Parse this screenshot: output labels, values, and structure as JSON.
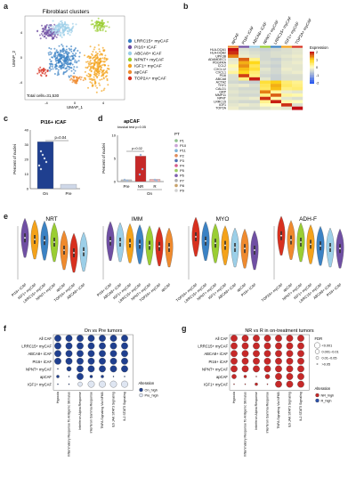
{
  "panel_labels": [
    "a",
    "b",
    "c",
    "d",
    "e",
    "f",
    "g"
  ],
  "a": {
    "title": "Fibroblast clusters",
    "xlabel": "UMAP_1",
    "ylabel": "UMAP_2",
    "total": "Total cells=31,530",
    "xticks": [
      "-4",
      "0",
      "4"
    ],
    "yticks": [
      "4",
      "0",
      "-4"
    ],
    "legend": [
      {
        "label": "LRRC15+ myCAF",
        "color": "#3b82c4"
      },
      {
        "label": "PI16+ iCAF",
        "color": "#6f4fa3"
      },
      {
        "label": "ABCA8+ iCAF",
        "color": "#9ccfe8"
      },
      {
        "label": "NPNT+ myCAF",
        "color": "#9acd32"
      },
      {
        "label": "IGF1+ myCAF",
        "color": "#f4a21a"
      },
      {
        "label": "apCAF",
        "color": "#ef8a2e"
      },
      {
        "label": "TOP2A+ myCAF",
        "color": "#d7301f"
      }
    ]
  },
  "b": {
    "columns": [
      "apCAF",
      "PI16+ iCAF",
      "ABCA8+ iCAF",
      "NPNT+ myCAF",
      "LRRC15+ myCAF",
      "IGF1+ myCAF",
      "TOP2A+ myCAF"
    ],
    "column_colors": [
      "#ef8a2e",
      "#6f4fa3",
      "#9ccfe8",
      "#9acd32",
      "#3b82c4",
      "#f4a21a",
      "#d7301f"
    ],
    "genes": [
      "HLA-DQA1",
      "HLA-DQB2",
      "UPK3B",
      "ADAMDEC1",
      "PDGFRA",
      "CCL2",
      "CXCL12",
      "CXCL1",
      "PI16",
      "ABCA8",
      "ACTA2",
      "THY1",
      "CALD1",
      "GRP",
      "MMP11",
      "NPNT",
      "LRRC15",
      "IGF1",
      "TOP2A"
    ],
    "matrix": [
      [
        2.5,
        -0.4,
        -0.5,
        -0.6,
        -0.5,
        -0.4,
        -0.3
      ],
      [
        2.3,
        -0.3,
        -0.4,
        -0.5,
        -0.4,
        -0.4,
        -0.3
      ],
      [
        1.8,
        -0.2,
        -0.3,
        -0.5,
        -0.4,
        -0.3,
        -0.2
      ],
      [
        -0.3,
        2.0,
        0.4,
        -0.5,
        -0.6,
        -0.4,
        -0.3
      ],
      [
        -0.2,
        1.5,
        1.2,
        -0.4,
        -0.5,
        -0.3,
        -0.2
      ],
      [
        0.2,
        1.7,
        0.8,
        -0.5,
        -0.6,
        -0.3,
        -0.3
      ],
      [
        -0.1,
        1.4,
        1.0,
        -0.3,
        -0.5,
        -0.2,
        -0.3
      ],
      [
        0.3,
        1.2,
        0.6,
        -0.4,
        -0.5,
        -0.3,
        -0.2
      ],
      [
        -0.4,
        2.2,
        0.5,
        -0.5,
        -0.6,
        -0.4,
        -0.4
      ],
      [
        -0.4,
        0.5,
        2.4,
        -0.3,
        -0.6,
        -0.4,
        -0.4
      ],
      [
        -0.5,
        -0.6,
        -0.6,
        1.0,
        1.3,
        0.6,
        0.4
      ],
      [
        -0.3,
        -0.2,
        -0.4,
        0.8,
        1.5,
        0.7,
        0.5
      ],
      [
        -0.4,
        -0.5,
        -0.5,
        0.7,
        1.4,
        0.5,
        0.6
      ],
      [
        -0.3,
        -0.4,
        -0.4,
        1.8,
        0.3,
        -0.2,
        -0.3
      ],
      [
        -0.4,
        -0.5,
        -0.5,
        0.5,
        2.0,
        0.3,
        0.2
      ],
      [
        -0.3,
        -0.3,
        -0.2,
        2.3,
        0.2,
        -0.3,
        -0.4
      ],
      [
        -0.4,
        -0.5,
        -0.5,
        0.4,
        2.4,
        0.2,
        0.1
      ],
      [
        -0.3,
        -0.2,
        -0.3,
        0.1,
        0.0,
        2.3,
        -0.4
      ],
      [
        -0.2,
        -0.4,
        -0.4,
        -0.3,
        -0.2,
        -0.3,
        2.6
      ]
    ],
    "legend_title": "Expression",
    "legend_ticks": [
      "2",
      "1",
      "0",
      "-1",
      "-2"
    ]
  },
  "c": {
    "title": "PI16+ iCAF",
    "ylabel": "Percent of nuclei",
    "pvalue": "p=0.04",
    "categories": [
      "On",
      "Pre"
    ],
    "values": [
      32,
      3
    ],
    "ylim": [
      0,
      40
    ],
    "yticks": [
      "40",
      "30",
      "20",
      "10",
      "0"
    ],
    "bar_colors": [
      "#1f3f8f",
      "#cfd8e8"
    ]
  },
  "d": {
    "title": "apCAF",
    "ylabel": "Percent of nuclei",
    "stat": "kruskal test p=0.05",
    "pair_p": "p=0.02",
    "categories": [
      "Pre",
      "NR",
      "R"
    ],
    "group_label": "On",
    "values": [
      0.4,
      5.5,
      0.5
    ],
    "ylim": [
      0,
      10
    ],
    "yticks": [
      "10",
      "5",
      "0"
    ],
    "bar_colors": [
      "#bfbfbf",
      "#c62828",
      "#f2b3b3"
    ],
    "pt_title": "PT",
    "pt_legend": [
      {
        "label": "P1",
        "color": "#8fbf8f"
      },
      {
        "label": "P10",
        "color": "#c9a3d6"
      },
      {
        "label": "P11",
        "color": "#7fb3d5"
      },
      {
        "label": "P2",
        "color": "#e08b5a"
      },
      {
        "label": "P3",
        "color": "#4f6fb0"
      },
      {
        "label": "P4",
        "color": "#d75c8a"
      },
      {
        "label": "P5",
        "color": "#9ccc65"
      },
      {
        "label": "P6",
        "color": "#7c5fb0"
      },
      {
        "label": "P7",
        "color": "#b0b0b0"
      },
      {
        "label": "P8",
        "color": "#c8a26a"
      },
      {
        "label": "P9",
        "color": "#d0d0d0"
      }
    ]
  },
  "e": {
    "colors": {
      "LRRC15+ myCAF": "#3b82c4",
      "PI16+ iCAF": "#6f4fa3",
      "ABCA8+ iCAF": "#9ccfe8",
      "NPNT+ myCAF": "#9acd32",
      "IGF1+ myCAF": "#f4a21a",
      "apCAF": "#ef8a2e",
      "TOP2A+ myCAF": "#d7301f"
    },
    "panels": [
      {
        "title": "NRT",
        "order": [
          "PI16+ iCAF",
          "IGF1+ myCAF",
          "LRRC15+ myCAF",
          "NPNT+ myCAF",
          "apCAF",
          "TOP2A+ myCAF",
          "ABCA8+ iCAF"
        ],
        "medians": [
          0.78,
          0.75,
          0.73,
          0.7,
          0.55,
          0.5,
          0.52
        ]
      },
      {
        "title": "IMM",
        "order": [
          "PI16+ iCAF",
          "ABCA8+ iCAF",
          "IGF1+ myCAF",
          "LRRC15+ myCAF",
          "NPNT+ myCAF",
          "TOP2A+ myCAF",
          "apCAF"
        ],
        "medians": [
          0.72,
          0.7,
          0.68,
          0.66,
          0.64,
          0.62,
          0.6
        ]
      },
      {
        "title": "MYO",
        "order": [
          "TOP2A+ myCAF",
          "LRRC15+ myCAF",
          "NPNT+ myCAF",
          "IGF1+ myCAF",
          "ABCA8+ iCAF",
          "apCAF",
          "PI16+ iCAF"
        ],
        "medians": [
          0.8,
          0.72,
          0.68,
          0.64,
          0.6,
          0.58,
          0.55
        ]
      },
      {
        "title": "ADH-F",
        "order": [
          "TOP2A+ myCAF",
          "apCAF",
          "NPNT+ myCAF",
          "IGF1+ myCAF",
          "LRRC15+ myCAF",
          "ABCA8+ iCAF",
          "PI16+ iCAF"
        ],
        "medians": [
          0.82,
          0.74,
          0.7,
          0.66,
          0.63,
          0.6,
          0.58
        ]
      }
    ]
  },
  "f": {
    "title": "On vs Pre tumors",
    "rows": [
      "All CAF",
      "LRRC15+ myCAF",
      "ABCA8+ iCAF",
      "PI16+ iCAF",
      "NPNT+ myCAF",
      "apCAF",
      "IGF1+ myCAF"
    ],
    "cols": [
      "Hypoxia",
      "Inflammatory Response To Antigenic Stimulus",
      "Interferon Alpha Response",
      "Interferon Gamma Response",
      "TNFA Signaling Via NFKB",
      "IL6 JAK STAT3 Signaling",
      "IL2 STAT5 Signaling"
    ],
    "dots": [
      [
        3,
        3,
        3,
        3,
        3,
        3,
        3
      ],
      [
        3,
        3,
        3,
        3,
        3,
        3,
        3
      ],
      [
        3,
        3,
        3,
        3,
        3,
        3,
        3
      ],
      [
        3,
        3,
        3,
        3,
        3,
        3,
        3
      ],
      [
        0,
        2,
        3,
        3,
        3,
        3,
        3
      ],
      [
        1,
        0,
        3,
        1,
        1,
        0,
        0
      ],
      [
        0,
        0,
        -2,
        -3,
        -3,
        -3,
        -3
      ]
    ],
    "legend_title": "Alteration",
    "legend": [
      {
        "label": "On_high",
        "color": "#1f3f8f"
      },
      {
        "label": "Pre_high",
        "color": "#dfe6f2"
      }
    ]
  },
  "g": {
    "title": "NR vs R in on-treatment tumors",
    "rows": [
      "All CAF",
      "LRRC15+ myCAF",
      "ABCA8+ iCAF",
      "PI16+ iCAF",
      "NPNT+ myCAF",
      "apCAF",
      "IGF1+ myCAF"
    ],
    "cols": [
      "Hypoxia",
      "Inflammatory Response To Antigenic Stimulus",
      "Interferon Alpha Response",
      "Interferon Gamma Response",
      "TNFA Signaling Via NFKB",
      "IL6 JAK STAT3 Signaling",
      "IL2 STAT5 Signaling"
    ],
    "dots": [
      [
        3,
        3,
        3,
        3,
        3,
        3,
        3
      ],
      [
        3,
        3,
        3,
        3,
        3,
        3,
        3
      ],
      [
        3,
        3,
        3,
        3,
        3,
        3,
        3
      ],
      [
        3,
        3,
        3,
        3,
        3,
        3,
        3
      ],
      [
        3,
        3,
        3,
        3,
        3,
        3,
        3
      ],
      [
        2,
        1,
        0,
        2,
        3,
        3,
        3
      ],
      [
        0,
        0,
        1,
        0,
        3,
        3,
        3
      ]
    ],
    "fdr_title": "FDR",
    "fdr": [
      "<0.001",
      "0.001~0.01",
      "0.01~0.05",
      ">0.05"
    ],
    "legend_title": "Alteration",
    "legend": [
      {
        "label": "NR_high",
        "color": "#c62828"
      },
      {
        "label": "R_high",
        "color": "#2a4fa8"
      }
    ]
  }
}
